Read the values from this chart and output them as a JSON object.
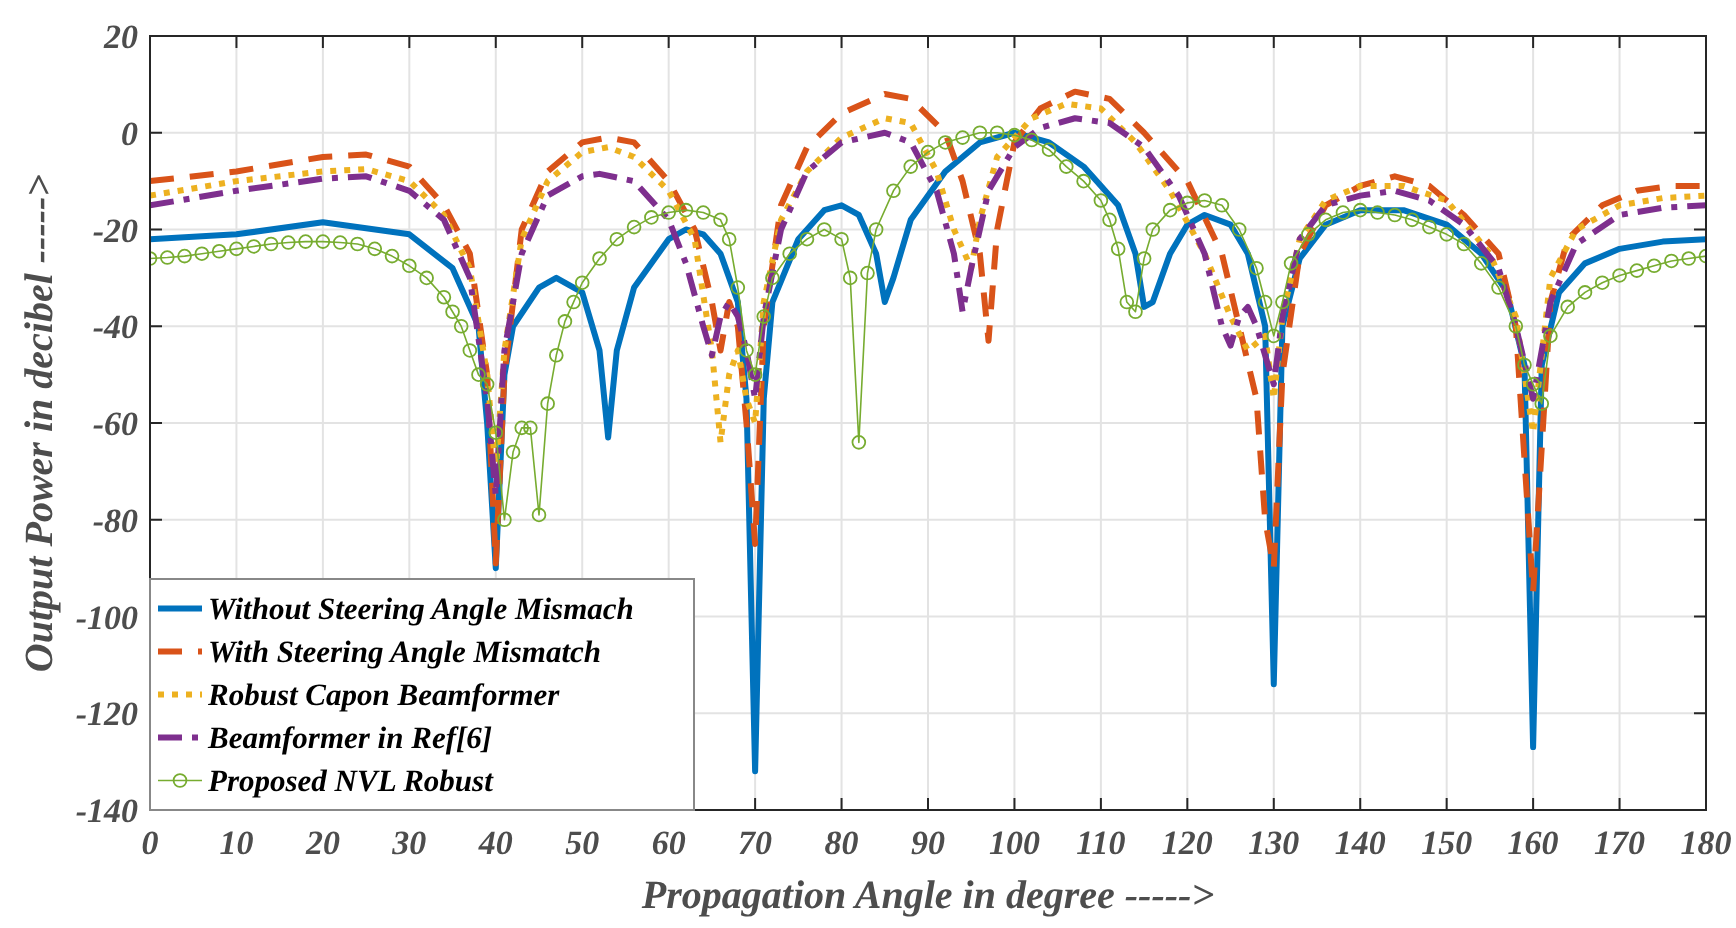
{
  "chart_data": {
    "type": "line",
    "xlabel": "Propagation Angle in degree  ----->",
    "ylabel": "Output Power in decibel  ----->",
    "xlim": [
      0,
      180
    ],
    "xticks": [
      0,
      10,
      20,
      30,
      40,
      50,
      60,
      70,
      80,
      90,
      100,
      110,
      120,
      130,
      140,
      150,
      160,
      170,
      180
    ],
    "ylim": [
      -140,
      20
    ],
    "yticks": [
      -140,
      -120,
      -100,
      -80,
      -60,
      -40,
      -20,
      0,
      20
    ],
    "grid": true,
    "legend": "bottom left",
    "series": [
      {
        "name": "Without Steering Angle Mismach",
        "color": "#0072bd",
        "line_style": "solid",
        "marker": "none",
        "x": [
          0,
          10,
          20,
          30,
          35,
          38,
          39,
          40,
          41,
          42,
          45,
          47,
          50,
          52,
          53,
          54,
          56,
          60,
          62,
          64,
          66,
          68,
          69,
          70,
          71,
          72,
          75,
          78,
          80,
          82,
          84,
          85,
          86,
          88,
          92,
          96,
          100,
          104,
          108,
          112,
          114,
          115,
          116,
          118,
          120,
          122,
          125,
          127,
          129,
          130,
          131,
          133,
          136,
          140,
          145,
          150,
          154,
          157,
          159,
          160,
          161,
          163,
          166,
          170,
          175,
          180
        ],
        "values": [
          -22,
          -21,
          -18.5,
          -21,
          -28,
          -40,
          -60,
          -90,
          -50,
          -40,
          -32,
          -30,
          -33,
          -45,
          -63,
          -45,
          -32,
          -22,
          -20,
          -21,
          -25,
          -35,
          -55,
          -132,
          -55,
          -35,
          -22,
          -16,
          -15,
          -17,
          -25,
          -35,
          -30,
          -18,
          -8,
          -2,
          0,
          -2,
          -7,
          -15,
          -25,
          -36,
          -35,
          -25,
          -19,
          -17,
          -19,
          -25,
          -40,
          -114,
          -40,
          -26,
          -19,
          -16,
          -16,
          -19,
          -25,
          -33,
          -48,
          -127,
          -48,
          -33,
          -27,
          -24,
          -22.5,
          -22
        ]
      },
      {
        "name": "With Steering Angle Mismatch",
        "color": "#d95319",
        "line_style": "dashed",
        "marker": "none",
        "x": [
          0,
          10,
          20,
          25,
          30,
          34,
          37,
          39,
          40,
          41,
          43,
          46,
          50,
          53,
          56,
          60,
          63,
          65,
          66,
          67,
          68,
          69,
          70,
          71,
          73,
          76,
          80,
          85,
          88,
          92,
          94,
          96,
          97,
          98,
          100,
          103,
          107,
          111,
          115,
          120,
          124,
          126,
          128,
          129,
          130,
          131,
          133,
          136,
          140,
          144,
          148,
          152,
          156,
          158,
          160,
          162,
          164,
          168,
          172,
          176,
          180
        ],
        "values": [
          -10,
          -8,
          -5,
          -4.5,
          -7,
          -15,
          -25,
          -50,
          -89,
          -50,
          -20,
          -8,
          -2,
          -1,
          -2,
          -10,
          -20,
          -35,
          -45,
          -35,
          -40,
          -60,
          -85,
          -40,
          -15,
          -3,
          4,
          8,
          7,
          0,
          -10,
          -25,
          -43,
          -20,
          -2,
          5,
          8.5,
          7,
          0,
          -10,
          -25,
          -40,
          -55,
          -80,
          -90,
          -50,
          -25,
          -15,
          -11,
          -9,
          -11,
          -17,
          -25,
          -40,
          -95,
          -35,
          -22,
          -15,
          -12,
          -11,
          -11
        ]
      },
      {
        "name": "Robust Capon Beamformer",
        "color": "#edb120",
        "line_style": "dotted",
        "marker": "none",
        "x": [
          0,
          10,
          20,
          25,
          30,
          34,
          37,
          39,
          40,
          41,
          43,
          46,
          50,
          53,
          56,
          60,
          63,
          65,
          66,
          67,
          68,
          69,
          70,
          71,
          73,
          76,
          80,
          85,
          88,
          91,
          93,
          95,
          96,
          98,
          102,
          106,
          110,
          114,
          118,
          122,
          125,
          127,
          129,
          130,
          131,
          133,
          136,
          140,
          145,
          150,
          155,
          158,
          160,
          162,
          165,
          170,
          175,
          180
        ],
        "values": [
          -13,
          -10,
          -8,
          -7.5,
          -10,
          -17,
          -28,
          -50,
          -70,
          -45,
          -22,
          -10,
          -4,
          -3,
          -5,
          -12,
          -22,
          -45,
          -64,
          -50,
          -45,
          -55,
          -60,
          -35,
          -18,
          -8,
          -1,
          3,
          2,
          -8,
          -20,
          -28,
          -18,
          -5,
          3,
          6,
          5,
          -2,
          -12,
          -25,
          -38,
          -45,
          -42,
          -55,
          -38,
          -22,
          -14,
          -11,
          -11,
          -14,
          -25,
          -38,
          -62,
          -30,
          -20,
          -15,
          -13.5,
          -13
        ]
      },
      {
        "name": "Beamformer in Ref[6]",
        "color": "#7e2f8e",
        "line_style": "dashdot",
        "marker": "none",
        "x": [
          0,
          10,
          20,
          25,
          30,
          34,
          37,
          39,
          40,
          41,
          43,
          46,
          50,
          52,
          56,
          60,
          62,
          64,
          65,
          66,
          67,
          68,
          69,
          70,
          71,
          73,
          76,
          80,
          85,
          88,
          91,
          93,
          94,
          95,
          97,
          100,
          103,
          107,
          111,
          115,
          119,
          122,
          124,
          125,
          126,
          127,
          128,
          130,
          131,
          133,
          136,
          140,
          144,
          148,
          152,
          156,
          158,
          160,
          162,
          165,
          170,
          175,
          180
        ],
        "values": [
          -15,
          -12,
          -9.5,
          -9,
          -12,
          -18,
          -30,
          -55,
          -75,
          -45,
          -25,
          -13,
          -9,
          -8.5,
          -10,
          -18,
          -27,
          -40,
          -46,
          -38,
          -35,
          -38,
          -45,
          -55,
          -38,
          -20,
          -8,
          -2,
          0,
          -2,
          -12,
          -25,
          -37,
          -28,
          -12,
          -3,
          1,
          3,
          2,
          -3,
          -13,
          -25,
          -40,
          -44,
          -38,
          -36,
          -40,
          -52,
          -38,
          -22,
          -15,
          -13,
          -12,
          -14,
          -19,
          -28,
          -40,
          -55,
          -35,
          -23,
          -17,
          -15.5,
          -15
        ]
      },
      {
        "name": "Proposed NVL Robust",
        "color": "#77ac30",
        "line_style": "solid",
        "marker": "circle",
        "x": [
          0,
          2,
          4,
          6,
          8,
          10,
          12,
          14,
          16,
          18,
          20,
          22,
          24,
          26,
          28,
          30,
          32,
          34,
          35,
          36,
          37,
          38,
          39,
          40,
          41,
          42,
          43,
          44,
          45,
          46,
          47,
          48,
          49,
          50,
          52,
          54,
          56,
          58,
          60,
          62,
          64,
          66,
          67,
          68,
          69,
          70,
          71,
          72,
          74,
          76,
          78,
          80,
          81,
          82,
          83,
          84,
          86,
          88,
          90,
          92,
          94,
          96,
          98,
          100,
          102,
          104,
          106,
          108,
          110,
          111,
          112,
          113,
          114,
          115,
          116,
          118,
          120,
          122,
          124,
          126,
          128,
          129,
          130,
          131,
          132,
          134,
          136,
          138,
          140,
          142,
          144,
          146,
          148,
          150,
          152,
          154,
          156,
          158,
          159,
          160,
          161,
          162,
          164,
          166,
          168,
          170,
          172,
          174,
          176,
          178,
          180
        ],
        "values": [
          -26,
          -25.8,
          -25.5,
          -25,
          -24.5,
          -24,
          -23.5,
          -23,
          -22.7,
          -22.5,
          -22.5,
          -22.7,
          -23,
          -24,
          -25.5,
          -27.5,
          -30,
          -34,
          -37,
          -40,
          -45,
          -50,
          -52,
          -62,
          -80,
          -66,
          -61,
          -61,
          -79,
          -56,
          -46,
          -39,
          -35,
          -31,
          -26,
          -22,
          -19.5,
          -17.5,
          -16.5,
          -16,
          -16.5,
          -18,
          -22,
          -32,
          -45,
          -50,
          -38,
          -30,
          -25,
          -22,
          -20,
          -22,
          -30,
          -64,
          -29,
          -20,
          -12,
          -7,
          -4,
          -2,
          -1,
          0,
          0,
          -0.5,
          -1.5,
          -3.5,
          -7,
          -10,
          -14,
          -18,
          -24,
          -35,
          -37,
          -26,
          -20,
          -16,
          -14.5,
          -14,
          -15,
          -20,
          -28,
          -35,
          -42,
          -35,
          -27,
          -21,
          -18,
          -16.5,
          -16,
          -16.5,
          -17,
          -18,
          -19.5,
          -21,
          -23,
          -27,
          -32,
          -40,
          -48,
          -52,
          -56,
          -42,
          -36,
          -33,
          -31,
          -29.5,
          -28.5,
          -27.5,
          -26.5,
          -26,
          -25.5
        ]
      }
    ]
  }
}
